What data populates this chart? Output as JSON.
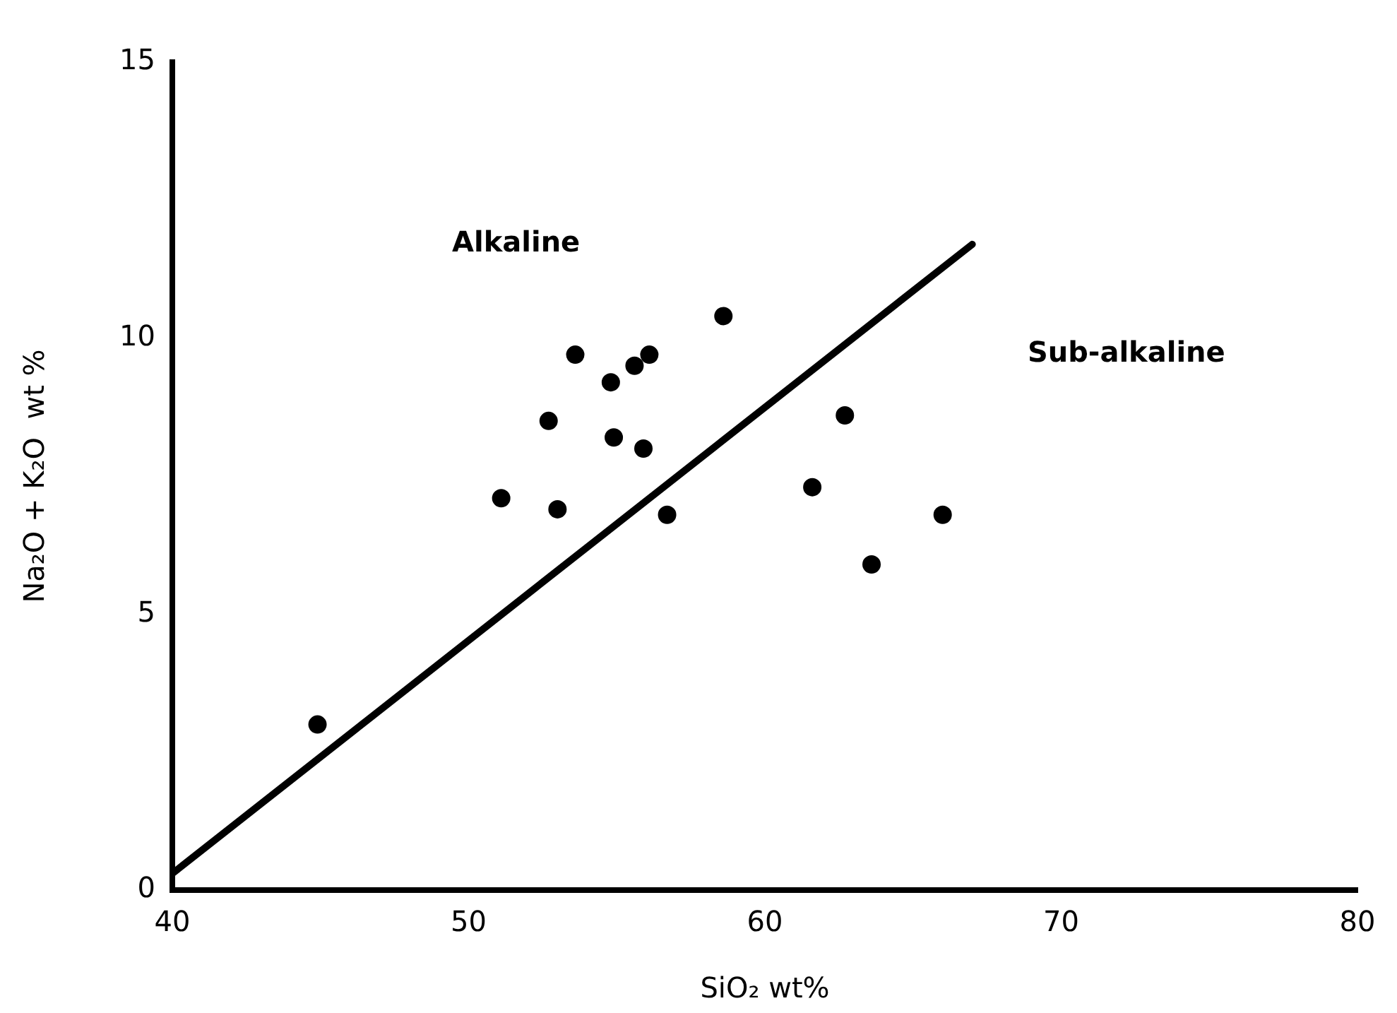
{
  "chart_data": {
    "type": "scatter",
    "xlabel": "SiO₂ wt%",
    "ylabel": "Na₂O + K₂O  wt %",
    "xlim": [
      40,
      80
    ],
    "xticks": [
      40,
      50,
      60,
      70,
      80
    ],
    "ylim": [
      0,
      15
    ],
    "yticks": [
      0,
      5,
      10,
      15
    ],
    "grid": false,
    "legend": false,
    "series": [
      {
        "color": "#000000",
        "marker": "circle",
        "x": [
          44.9,
          51.1,
          52.7,
          53.0,
          53.6,
          54.8,
          54.9,
          55.6,
          55.9,
          56.1,
          56.7,
          58.6,
          61.6,
          62.7,
          63.6,
          66.0
        ],
        "values": [
          3.0,
          7.1,
          8.5,
          6.9,
          9.7,
          9.2,
          8.2,
          9.5,
          8.0,
          9.7,
          6.8,
          10.4,
          7.3,
          8.6,
          5.9,
          6.8
        ]
      },
      {
        "type": "line",
        "color": "#000000",
        "line_style": "solid",
        "x": [
          40,
          67
        ],
        "values": [
          0.3,
          11.7
        ]
      }
    ],
    "annotations": [
      "Alkaline",
      "Sub-alkaline"
    ]
  }
}
